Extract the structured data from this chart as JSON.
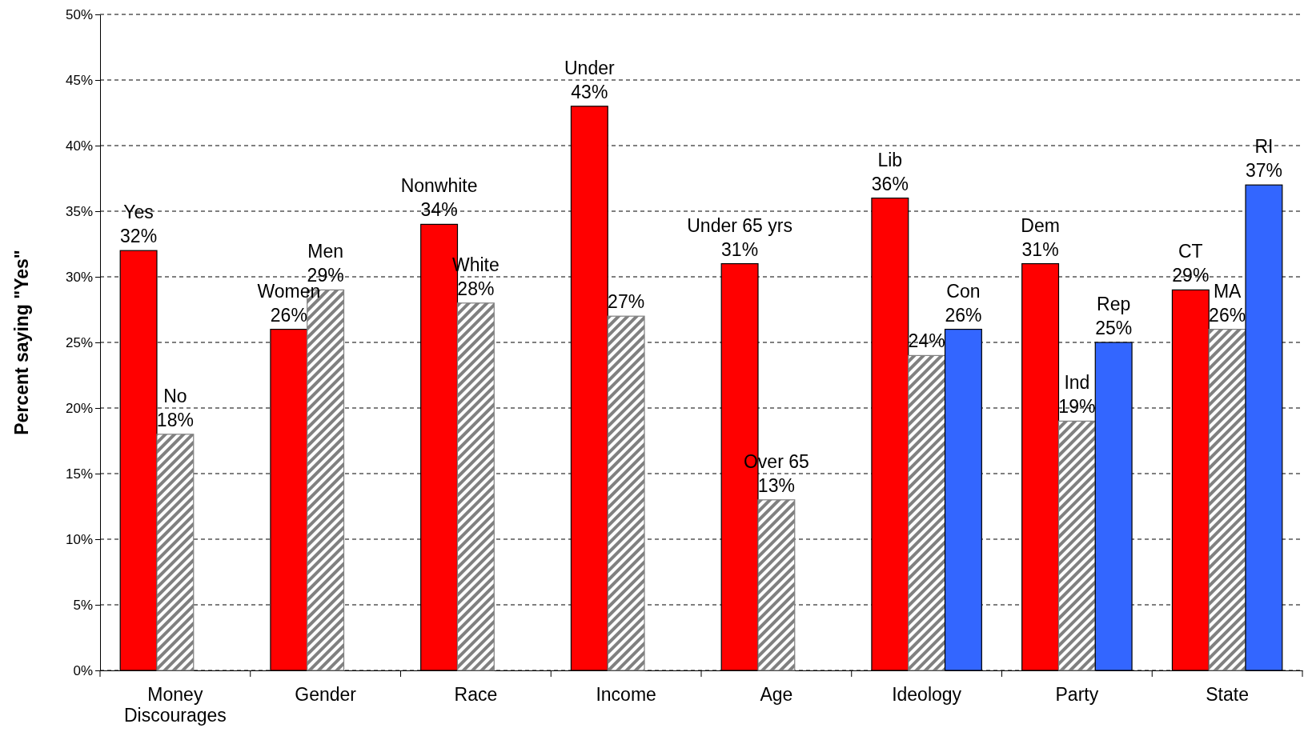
{
  "chart_data": {
    "type": "bar",
    "ylabel": "Percent saying \"Yes\"",
    "categories": [
      "Money Discourages",
      "Gender",
      "Race",
      "Income",
      "Age",
      "Ideology",
      "Party",
      "State"
    ],
    "series": [
      {
        "color": "#ff0000",
        "values": [
          32,
          26,
          34,
          43,
          31,
          36,
          31,
          29
        ],
        "value_labels": [
          "Yes\n32%",
          "Women\n26%",
          "Nonwhite\n34%",
          "Under\n43%",
          "Under 65 yrs\n31%",
          "Lib\n36%",
          "Dem\n31%",
          "CT\n29%"
        ]
      },
      {
        "color": "#808080",
        "values": [
          18,
          29,
          28,
          27,
          13,
          24,
          19,
          26
        ],
        "value_labels": [
          "No\n18%",
          "Men\n29%",
          "White\n28%",
          "27%",
          "Over 65\n13%",
          "24%",
          "Ind\n19%",
          "MA\n26%"
        ]
      },
      {
        "color": "#3366ff",
        "values": [
          null,
          null,
          null,
          null,
          null,
          26,
          25,
          37
        ],
        "value_labels": [
          null,
          null,
          null,
          null,
          null,
          "Con\n26%",
          "Rep\n25%",
          "RI\n37%"
        ]
      }
    ],
    "ylim": [
      0,
      50
    ],
    "yticks": [
      {
        "value": 0,
        "label": "0%"
      },
      {
        "value": 5,
        "label": "5%"
      },
      {
        "value": 10,
        "label": "10%"
      },
      {
        "value": 15,
        "label": "15%"
      },
      {
        "value": 20,
        "label": "20%"
      },
      {
        "value": 25,
        "label": "25%"
      },
      {
        "value": 30,
        "label": "30%"
      },
      {
        "value": 35,
        "label": "35%"
      },
      {
        "value": 40,
        "label": "40%"
      },
      {
        "value": 45,
        "label": "45%"
      },
      {
        "value": 50,
        "label": "50%"
      }
    ],
    "grid": "y"
  }
}
